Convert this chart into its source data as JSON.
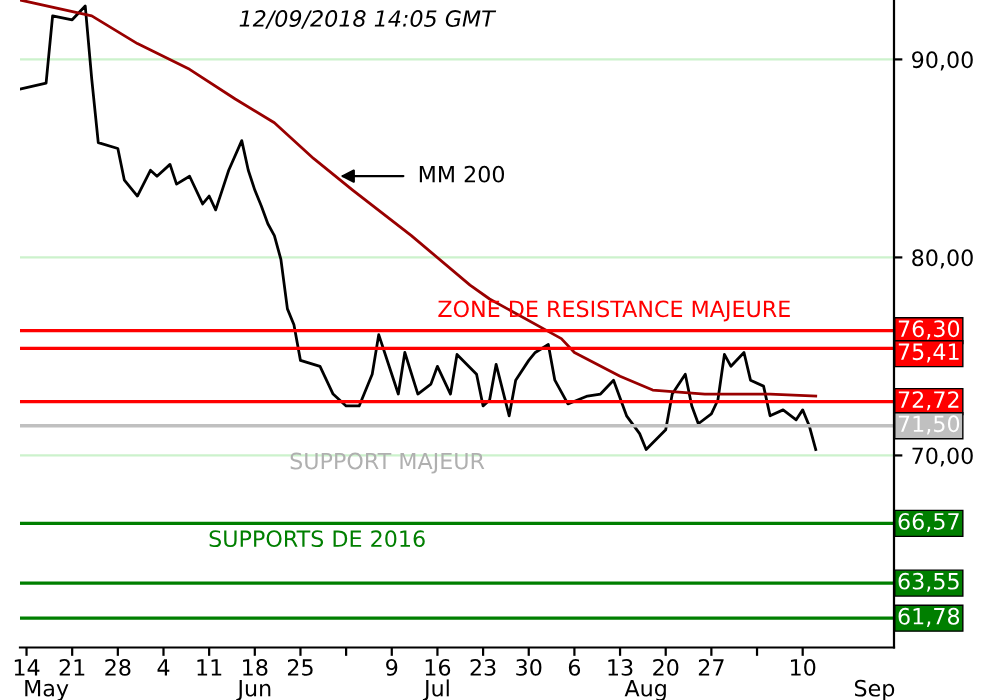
{
  "chart_data": {
    "type": "line",
    "x": [
      "2018-05-13",
      "2018-05-17",
      "2018-05-18",
      "2018-05-21",
      "2018-05-23",
      "2018-05-24",
      "2018-05-25",
      "2018-05-28",
      "2018-05-29",
      "2018-05-31",
      "2018-06-02",
      "2018-06-03",
      "2018-06-05",
      "2018-06-06",
      "2018-06-08",
      "2018-06-10",
      "2018-06-11",
      "2018-06-12",
      "2018-06-13",
      "2018-06-14",
      "2018-06-16",
      "2018-06-17",
      "2018-06-18",
      "2018-06-19",
      "2018-06-20",
      "2018-06-21",
      "2018-06-22",
      "2018-06-23",
      "2018-06-24",
      "2018-06-25",
      "2018-06-28",
      "2018-06-30",
      "2018-07-02",
      "2018-07-04",
      "2018-07-06",
      "2018-07-07",
      "2018-07-09",
      "2018-07-10",
      "2018-07-11",
      "2018-07-13",
      "2018-07-15",
      "2018-07-16",
      "2018-07-18",
      "2018-07-19",
      "2018-07-22",
      "2018-07-23",
      "2018-07-24",
      "2018-07-25",
      "2018-07-27",
      "2018-07-28",
      "2018-07-30",
      "2018-07-31",
      "2018-08-02",
      "2018-08-03",
      "2018-08-05",
      "2018-08-08",
      "2018-08-10",
      "2018-08-12",
      "2018-08-14",
      "2018-08-16",
      "2018-08-17",
      "2018-08-20",
      "2018-08-21",
      "2018-08-23",
      "2018-08-24",
      "2018-08-25",
      "2018-08-27",
      "2018-08-28",
      "2018-08-29",
      "2018-08-30",
      "2018-09-01",
      "2018-09-02",
      "2018-09-04",
      "2018-09-05",
      "2018-09-07",
      "2018-09-09",
      "2018-09-10",
      "2018-09-11",
      "2018-09-12"
    ],
    "series": [
      {
        "color": "#000000",
        "values": [
          88.5,
          88.8,
          92.2,
          92.0,
          92.7,
          89.0,
          85.8,
          85.5,
          83.9,
          83.1,
          84.4,
          84.1,
          84.7,
          83.7,
          84.1,
          82.7,
          83.1,
          82.4,
          83.4,
          84.4,
          85.9,
          84.4,
          83.4,
          82.6,
          81.7,
          81.1,
          79.9,
          77.4,
          76.6,
          74.8,
          74.5,
          73.1,
          72.5,
          72.5,
          74.1,
          76.1,
          74.1,
          73.1,
          75.2,
          73.1,
          73.6,
          74.5,
          73.1,
          75.1,
          74.1,
          72.5,
          72.8,
          74.6,
          72.0,
          73.8,
          74.8,
          75.2,
          75.6,
          73.8,
          72.6,
          73.0,
          73.1,
          73.8,
          72.0,
          71.1,
          70.3,
          71.3,
          73.1,
          74.1,
          72.5,
          71.6,
          72.1,
          72.8,
          75.1,
          74.5,
          75.2,
          73.8,
          73.5,
          72.0,
          72.3,
          71.8,
          72.3,
          71.5,
          70.3
        ]
      },
      {
        "color": "#990000",
        "x": [
          "2018-05-13",
          "2018-05-24",
          "2018-05-31",
          "2018-06-08",
          "2018-06-15",
          "2018-06-21",
          "2018-06-27",
          "2018-07-03",
          "2018-07-12",
          "2018-07-21",
          "2018-07-24",
          "2018-08-04",
          "2018-08-06",
          "2018-08-13",
          "2018-08-18",
          "2018-08-26",
          "2018-09-05",
          "2018-09-12"
        ],
        "values": [
          93.0,
          92.2,
          90.8,
          89.5,
          88.0,
          86.8,
          85.0,
          83.4,
          81.1,
          78.6,
          77.9,
          75.9,
          75.2,
          74.0,
          73.3,
          73.1,
          73.1,
          73.0
        ]
      }
    ],
    "xlim": [
      "2018-05-13",
      "2018-09-24"
    ],
    "xticks": [
      {
        "value": "2018-05-14",
        "label": "14"
      },
      {
        "value": "2018-05-21",
        "label": "21"
      },
      {
        "value": "2018-05-28",
        "label": "28"
      },
      {
        "value": "2018-06-04",
        "label": "4"
      },
      {
        "value": "2018-06-11",
        "label": "11"
      },
      {
        "value": "2018-06-18",
        "label": "18"
      },
      {
        "value": "2018-06-25",
        "label": "25"
      },
      {
        "value": "2018-07-02",
        "label": null
      },
      {
        "value": "2018-07-09",
        "label": "9"
      },
      {
        "value": "2018-07-16",
        "label": "16"
      },
      {
        "value": "2018-07-23",
        "label": "23"
      },
      {
        "value": "2018-07-30",
        "label": "30"
      },
      {
        "value": "2018-08-06",
        "label": "6"
      },
      {
        "value": "2018-08-13",
        "label": "13"
      },
      {
        "value": "2018-08-20",
        "label": "20"
      },
      {
        "value": "2018-08-27",
        "label": "27"
      },
      {
        "value": "2018-09-03",
        "label": null
      },
      {
        "value": "2018-09-10",
        "label": "10"
      }
    ],
    "x2lim": [
      "2018-05-13",
      "2018-09-24"
    ],
    "x2ticks": [
      {
        "value": "2018-05-17",
        "label": "May"
      },
      {
        "value": "2018-06-18",
        "label": "Jun"
      },
      {
        "value": "2018-07-16",
        "label": "Jul"
      },
      {
        "value": "2018-08-17",
        "label": "Aug"
      },
      {
        "value": "2018-09-21",
        "label": "Sep"
      }
    ],
    "ylim": [
      60.3,
      93.0
    ],
    "yticks": [
      {
        "value": 70,
        "label": "70,00"
      },
      {
        "value": 80,
        "label": "80,00"
      },
      {
        "value": 90,
        "label": "90,00"
      }
    ],
    "grid": "y",
    "ref_lines": [
      {
        "axis": "y",
        "value": 76.3,
        "label": "76,30",
        "color": "#ff0000"
      },
      {
        "axis": "y",
        "value": 75.41,
        "label": "75,41",
        "color": "#ff0000"
      },
      {
        "axis": "y",
        "value": 72.72,
        "label": "72,72",
        "color": "#ff0000"
      },
      {
        "axis": "y",
        "value": 71.5,
        "label": "71,50",
        "color": "#c0c0c0"
      },
      {
        "axis": "y",
        "value": 66.57,
        "label": "66,57",
        "color": "#007f00"
      },
      {
        "axis": "y",
        "value": 63.55,
        "label": "63,55",
        "color": "#007f00"
      },
      {
        "axis": "y",
        "value": 61.78,
        "label": "61,78",
        "color": "#007f00"
      }
    ],
    "annotations": [
      "12/09/2018 14:05 GMT",
      "MM 200",
      "ZONE DE RESISTANCE MAJEURE",
      "SUPPORT MAJEUR",
      "SUPPORTS DE 2016"
    ]
  }
}
